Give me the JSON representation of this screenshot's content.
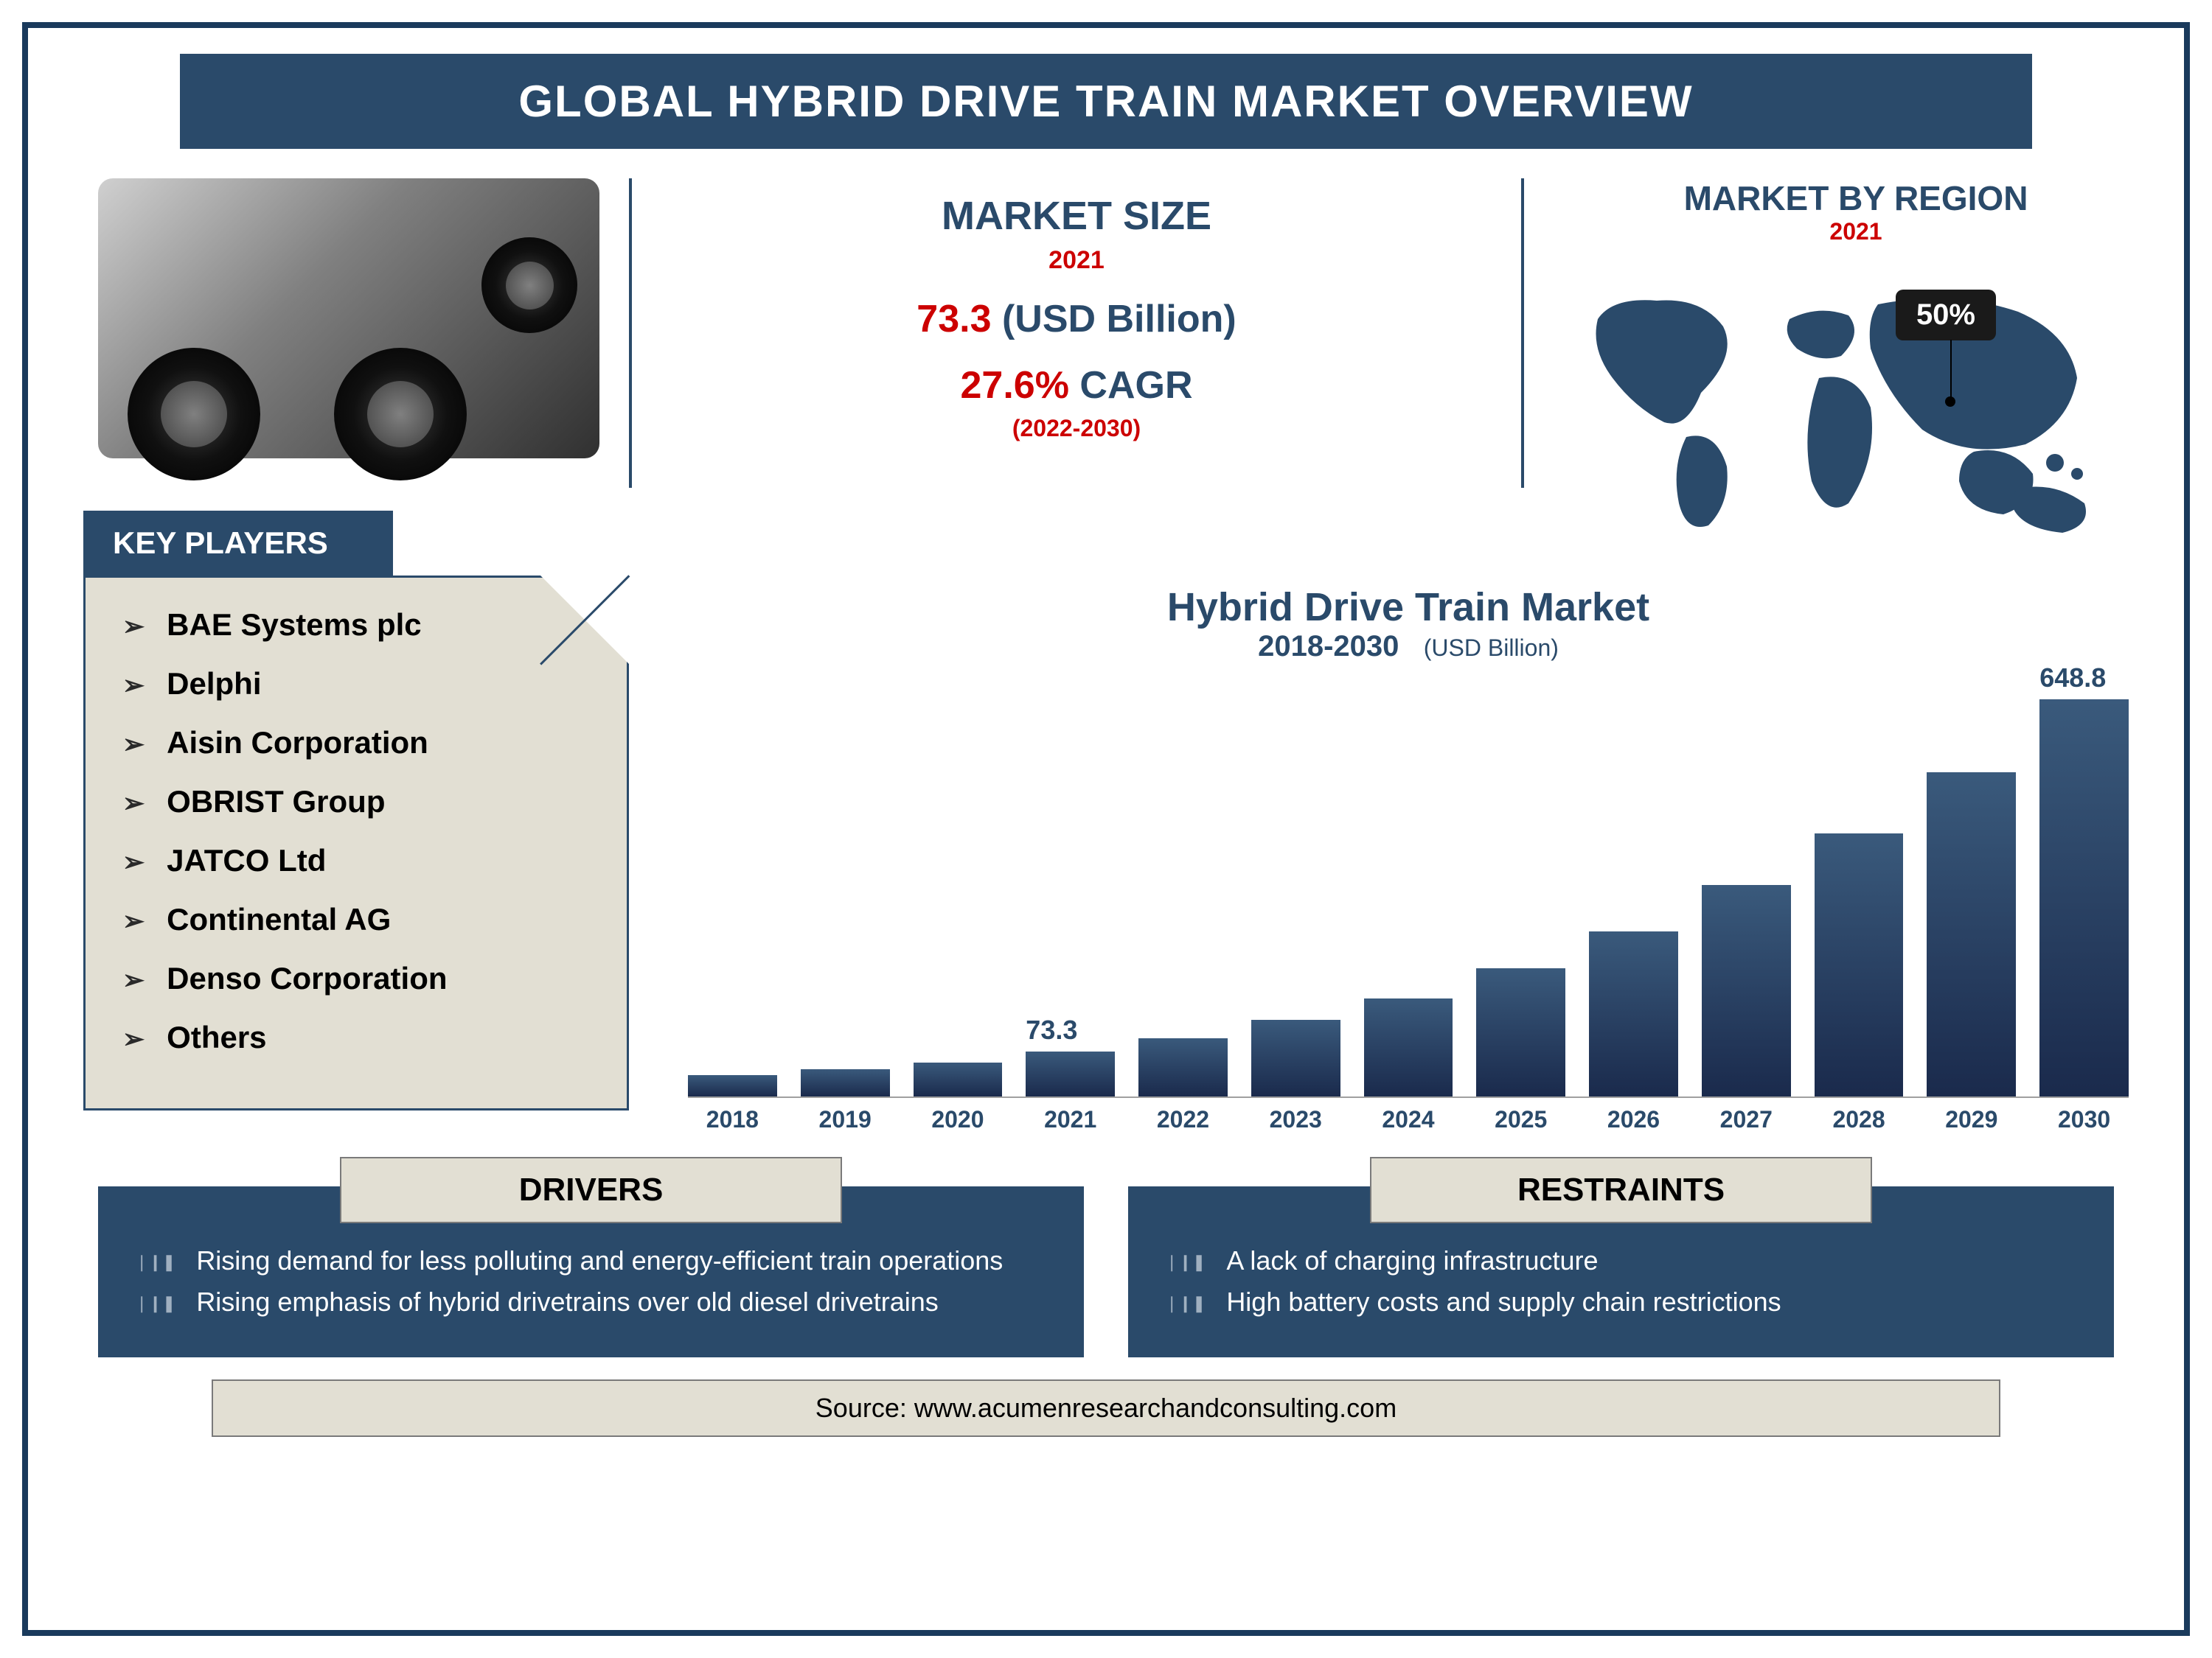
{
  "title": "GLOBAL HYBRID DRIVE TRAIN MARKET OVERVIEW",
  "market_size": {
    "heading": "MARKET SIZE",
    "year": "2021",
    "value_number": "73.3",
    "value_unit": "(USD Billion)",
    "cagr_number": "27.6%",
    "cagr_label": "CAGR",
    "cagr_range": "(2022-2030)"
  },
  "region": {
    "heading": "MARKET BY REGION",
    "year": "2021",
    "highlight_value": "50%",
    "map_fill": "#2a4a6a"
  },
  "key_players": {
    "heading": "KEY PLAYERS",
    "items": [
      "BAE Systems plc",
      "Delphi",
      "Aisin Corporation",
      "OBRIST Group",
      "JATCO Ltd",
      "Continental AG",
      "Denso Corporation",
      "Others"
    ]
  },
  "chart": {
    "type": "bar",
    "title": "Hybrid Drive Train Market",
    "period": "2018-2030",
    "unit": "(USD Billion)",
    "categories": [
      "2018",
      "2019",
      "2020",
      "2021",
      "2022",
      "2023",
      "2024",
      "2025",
      "2026",
      "2027",
      "2028",
      "2029",
      "2030"
    ],
    "values": [
      35,
      45,
      55,
      73.3,
      95,
      125,
      160,
      210,
      270,
      345,
      430,
      530,
      648.8
    ],
    "value_labels": [
      "",
      "",
      "",
      "73.3",
      "",
      "",
      "",
      "",
      "",
      "",
      "",
      "",
      "648.8"
    ],
    "ymax": 650,
    "bar_colors": "#2a4a6a",
    "label_color": "#2a4a6a",
    "label_fontsize": 36,
    "xlabel_fontsize": 32,
    "background_color": "#ffffff"
  },
  "drivers": {
    "heading": "DRIVERS",
    "items": [
      "Rising demand for less polluting and energy-efficient train operations",
      "Rising emphasis of hybrid drivetrains over old diesel drivetrains"
    ]
  },
  "restraints": {
    "heading": "RESTRAINTS",
    "items": [
      "A lack of charging infrastructure",
      "High battery costs and supply chain restrictions"
    ]
  },
  "source": "Source: www.acumenresearchandconsulting.com",
  "palette": {
    "primary": "#2a4a6a",
    "accent_red": "#cc0000",
    "panel_beige": "#e2dfd3",
    "frame_border": "#1a3a5c",
    "text_white": "#ffffff",
    "text_black": "#000000"
  }
}
